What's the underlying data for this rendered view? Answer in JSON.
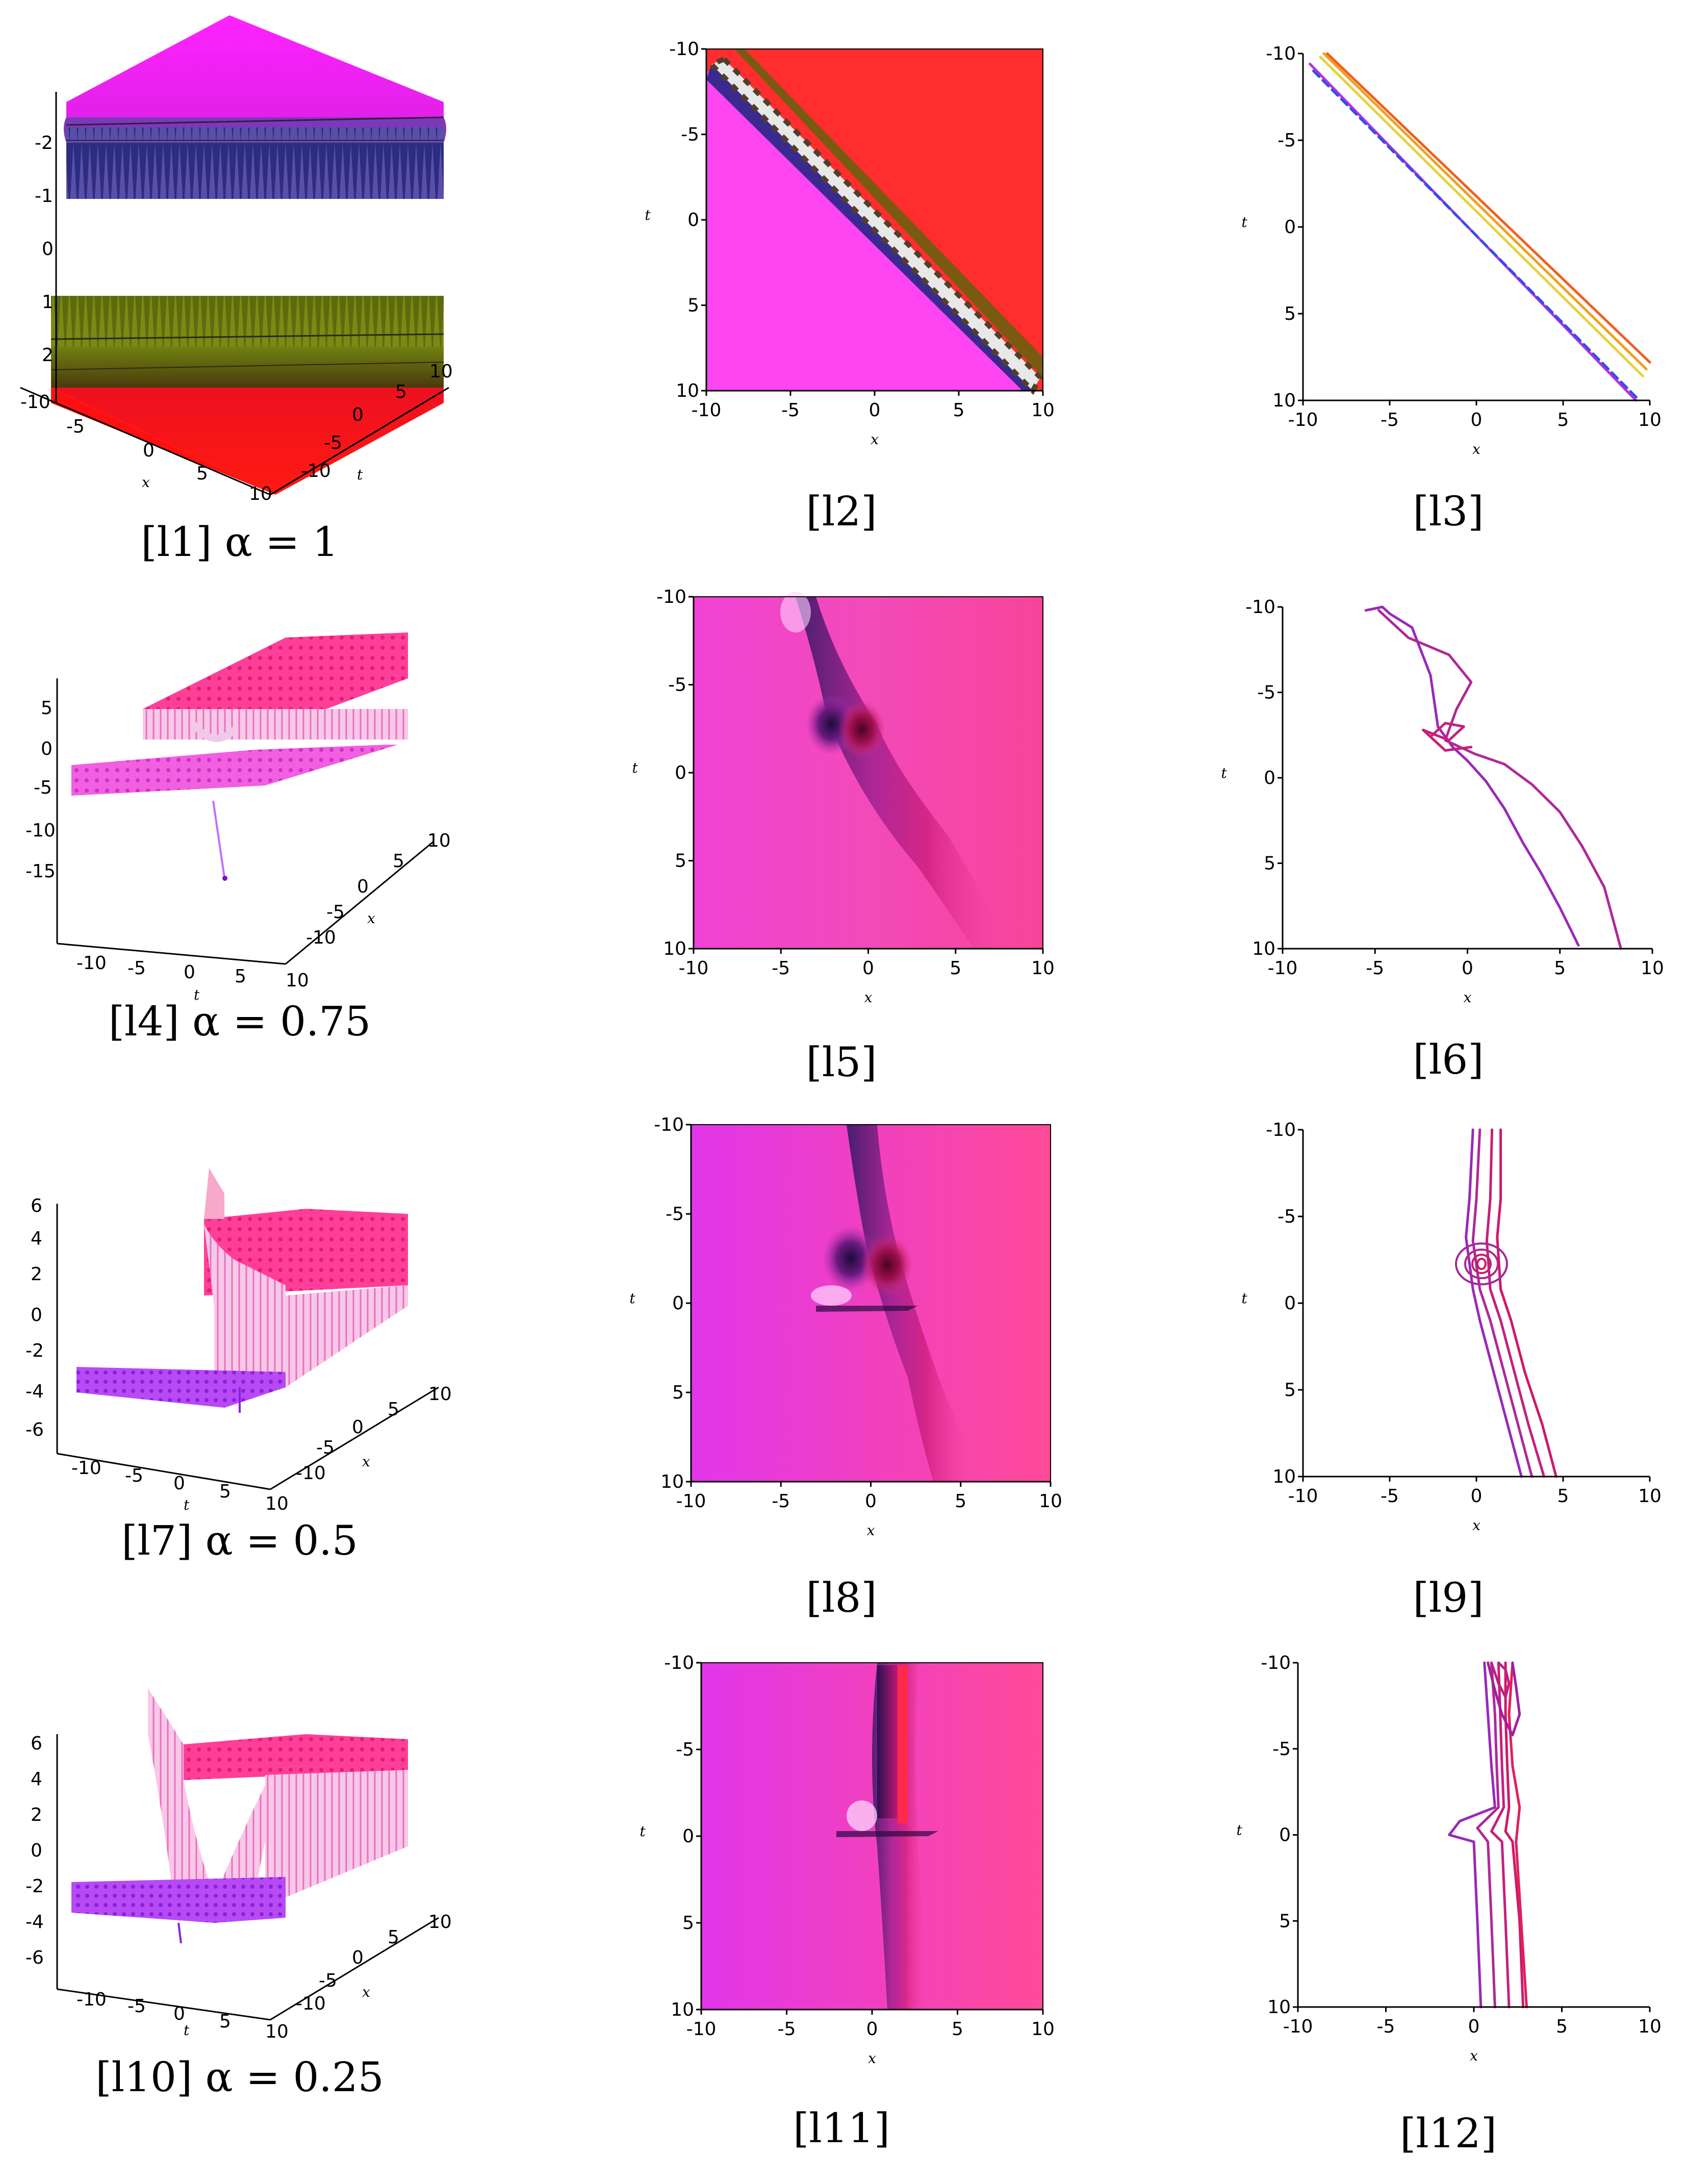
{
  "figure": {
    "panels": [
      {
        "id": "l1",
        "kind": "3d",
        "caption": "[l1] α = 1"
      },
      {
        "id": "l2",
        "kind": "density",
        "caption": "[l2]"
      },
      {
        "id": "l3",
        "kind": "contour",
        "caption": "[l3]"
      },
      {
        "id": "l4",
        "kind": "3d",
        "caption": "[l4] α = 0.75"
      },
      {
        "id": "l5",
        "kind": "density",
        "caption": "[l5]"
      },
      {
        "id": "l6",
        "kind": "contour",
        "caption": "[l6]"
      },
      {
        "id": "l7",
        "kind": "3d",
        "caption": "[l7] α = 0.5"
      },
      {
        "id": "l8",
        "kind": "density",
        "caption": "[l8]"
      },
      {
        "id": "l9",
        "kind": "contour",
        "caption": "[l9]"
      },
      {
        "id": "l10",
        "kind": "3d",
        "caption": "[l10] α = 0.25"
      },
      {
        "id": "l11",
        "kind": "density",
        "caption": "[l11]"
      },
      {
        "id": "l12",
        "kind": "contour",
        "caption": "[l12]"
      }
    ]
  },
  "chart_data": [
    {
      "type": "surface",
      "panel": "l1",
      "alpha": 1,
      "xlabel": "x",
      "ylabel": "t",
      "x_ticks": [
        -10,
        -5,
        0,
        5,
        10
      ],
      "t_ticks": [
        -10,
        -5,
        0,
        5,
        10
      ],
      "z_ticks": [
        -2,
        -1,
        0,
        1,
        2
      ]
    },
    {
      "type": "heatmap",
      "panel": "l2",
      "xlabel": "x",
      "ylabel": "t",
      "xlim": [
        -10,
        10
      ],
      "ylim": [
        -10,
        10
      ],
      "x_ticks": [
        -10,
        -5,
        0,
        5,
        10
      ],
      "y_ticks": [
        -10,
        -5,
        0,
        5,
        10
      ]
    },
    {
      "type": "line",
      "panel": "l3",
      "xlabel": "x",
      "ylabel": "t",
      "xlim": [
        -10,
        10
      ],
      "ylim": [
        -10,
        10
      ],
      "x_ticks": [
        -10,
        -5,
        0,
        5,
        10
      ],
      "y_ticks": [
        -10,
        -5,
        0,
        5,
        10
      ],
      "series": [
        {
          "x": [
            -9.6,
            9.2
          ],
          "y": [
            -9.4,
            10
          ]
        },
        {
          "x": [
            -9.4,
            9.4
          ],
          "y": [
            -9.0,
            10
          ]
        },
        {
          "x": [
            -9.0,
            9.6
          ],
          "y": [
            -9.8,
            8.6
          ]
        },
        {
          "x": [
            -8.8,
            9.8
          ],
          "y": [
            -10,
            8.2
          ]
        },
        {
          "x": [
            -8.6,
            10
          ],
          "y": [
            -10,
            7.8
          ]
        }
      ]
    },
    {
      "type": "surface",
      "panel": "l4",
      "alpha": 0.75,
      "xlabel": "x",
      "ylabel": "t",
      "x_ticks": [
        -10,
        -5,
        0,
        5,
        10
      ],
      "t_ticks": [
        -10,
        -5,
        0,
        5,
        10
      ],
      "z_ticks": [
        5,
        0,
        -5,
        -10,
        -15
      ]
    },
    {
      "type": "heatmap",
      "panel": "l5",
      "xlabel": "x",
      "ylabel": "t",
      "xlim": [
        -10,
        10
      ],
      "ylim": [
        -10,
        10
      ],
      "x_ticks": [
        -10,
        -5,
        0,
        5,
        10
      ],
      "y_ticks": [
        -10,
        -5,
        0,
        5,
        10
      ]
    },
    {
      "type": "line",
      "panel": "l6",
      "xlabel": "x",
      "ylabel": "t",
      "xlim": [
        -10,
        10
      ],
      "ylim": [
        -10,
        10
      ],
      "x_ticks": [
        -10,
        -5,
        0,
        5,
        10
      ],
      "y_ticks": [
        -10,
        -5,
        0,
        5,
        10
      ],
      "series": [
        {
          "x": [
            -5.5,
            -4.6,
            -4.2,
            -3.0,
            -2.0,
            -1.6,
            -0.8,
            0.0,
            1.0,
            2.0,
            3.0,
            4.0,
            5.0,
            6.0
          ],
          "y": [
            -9.8,
            -10.0,
            -9.6,
            -8.8,
            -6.0,
            -3.0,
            -1.8,
            -1.0,
            0.2,
            1.8,
            3.8,
            5.6,
            7.6,
            9.8
          ]
        },
        {
          "x": [
            -4.8,
            -3.2,
            -1.0,
            0.2,
            -0.6,
            -1.2,
            0.4,
            2.0,
            3.5,
            5.0,
            6.2,
            7.4,
            8.3
          ],
          "y": [
            -9.8,
            -8.2,
            -7.2,
            -5.6,
            -4.0,
            -2.2,
            -1.4,
            -0.8,
            0.4,
            2.0,
            4.0,
            6.4,
            10.0
          ]
        },
        {
          "x": [
            -2.0,
            -1.2,
            -0.2,
            -1.0,
            -2.4,
            -1.2,
            0.2
          ],
          "y": [
            -2.4,
            -3.2,
            -3.0,
            -2.2,
            -2.8,
            -1.6,
            -1.8
          ]
        }
      ]
    },
    {
      "type": "surface",
      "panel": "l7",
      "alpha": 0.5,
      "xlabel": "x",
      "ylabel": "t",
      "x_ticks": [
        -10,
        -5,
        0,
        5,
        10
      ],
      "t_ticks": [
        -10,
        -5,
        0,
        5,
        10
      ],
      "z_ticks": [
        6,
        4,
        2,
        0,
        -2,
        -4,
        -6
      ]
    },
    {
      "type": "heatmap",
      "panel": "l8",
      "xlabel": "x",
      "ylabel": "t",
      "xlim": [
        -10,
        10
      ],
      "ylim": [
        -10,
        10
      ],
      "x_ticks": [
        -10,
        -5,
        0,
        5,
        10
      ],
      "y_ticks": [
        -10,
        -5,
        0,
        5,
        10
      ]
    },
    {
      "type": "line",
      "panel": "l9",
      "xlabel": "x",
      "ylabel": "t",
      "xlim": [
        -10,
        10
      ],
      "ylim": [
        -10,
        10
      ],
      "x_ticks": [
        -10,
        -5,
        0,
        5,
        10
      ],
      "y_ticks": [
        -10,
        -5,
        0,
        5,
        10
      ],
      "series": [
        {
          "x": [
            -0.2,
            -0.4,
            -0.6,
            -0.2,
            0.2,
            1.0,
            1.8,
            2.6
          ],
          "y": [
            -10,
            -6,
            -3.8,
            -0.8,
            1.0,
            4.0,
            7.0,
            10
          ]
        },
        {
          "x": [
            0.2,
            0.0,
            -0.2,
            0.2,
            0.8,
            1.6,
            2.4,
            3.2
          ],
          "y": [
            -10,
            -6,
            -3.6,
            -0.8,
            1.0,
            4.0,
            7.0,
            10
          ]
        },
        {
          "x": [
            0.9,
            0.8,
            0.6,
            0.8,
            1.4,
            2.2,
            3.0,
            3.9
          ],
          "y": [
            -10,
            -6,
            -3.6,
            -0.8,
            1.0,
            4.0,
            7.0,
            10
          ]
        },
        {
          "x": [
            1.4,
            1.4,
            1.2,
            1.4,
            2.0,
            2.8,
            3.8,
            4.6
          ],
          "y": [
            -10,
            -6,
            -3.8,
            -0.8,
            1.0,
            4.0,
            7.0,
            10
          ]
        }
      ]
    },
    {
      "type": "surface",
      "panel": "l10",
      "alpha": 0.25,
      "xlabel": "x",
      "ylabel": "t",
      "x_ticks": [
        -10,
        -5,
        0,
        5,
        10
      ],
      "t_ticks": [
        -10,
        -5,
        0,
        5,
        10
      ],
      "z_ticks": [
        6,
        4,
        2,
        0,
        -2,
        -4,
        -6
      ]
    },
    {
      "type": "heatmap",
      "panel": "l11",
      "xlabel": "x",
      "ylabel": "t",
      "xlim": [
        -10,
        10
      ],
      "ylim": [
        -10,
        10
      ],
      "x_ticks": [
        -10,
        -5,
        0,
        5,
        10
      ],
      "y_ticks": [
        -10,
        -5,
        0,
        5,
        10
      ]
    },
    {
      "type": "line",
      "panel": "l12",
      "xlabel": "x",
      "ylabel": "t",
      "xlim": [
        -10,
        10
      ],
      "ylim": [
        -10,
        10
      ],
      "x_ticks": [
        -10,
        -5,
        0,
        5,
        10
      ],
      "y_ticks": [
        -10,
        -5,
        0,
        5,
        10
      ],
      "series": [
        {
          "x": [
            0.6,
            0.8,
            1.0,
            1.2,
            -0.8,
            -1.4,
            0.0,
            0.2,
            0.4
          ],
          "y": [
            -10,
            -7,
            -4,
            -1.6,
            -0.8,
            0.0,
            0.4,
            5.0,
            10
          ]
        },
        {
          "x": [
            1.0,
            1.2,
            1.3,
            1.4,
            0.2,
            0.8,
            1.0,
            1.2
          ],
          "y": [
            -10,
            -7,
            -4,
            -1.6,
            -0.4,
            0.4,
            5.0,
            10
          ]
        },
        {
          "x": [
            1.4,
            1.5,
            1.6,
            1.7,
            1.0,
            1.6,
            1.8,
            2.0
          ],
          "y": [
            -10,
            -7,
            -4,
            -1.6,
            -0.2,
            0.4,
            5.0,
            10
          ]
        },
        {
          "x": [
            1.8,
            1.8,
            1.9,
            2.0,
            1.8,
            2.2,
            2.6,
            2.8
          ],
          "y": [
            -10,
            -7,
            -4,
            -1.6,
            -0.2,
            0.4,
            5.0,
            10
          ]
        },
        {
          "x": [
            2.2,
            2.0,
            2.2,
            2.6,
            2.4,
            3.0
          ],
          "y": [
            -10,
            -7,
            -4,
            -1.6,
            0.4,
            10
          ]
        },
        {
          "x": [
            0.8,
            1.2,
            1.6,
            2.2,
            2.6,
            2.4,
            2.2
          ],
          "y": [
            -10,
            -8.4,
            -7.0,
            -5.8,
            -7.0,
            -8.6,
            -10
          ]
        },
        {
          "x": [
            1.0,
            1.4,
            1.8,
            2.0,
            1.8,
            1.4
          ],
          "y": [
            -10,
            -8.8,
            -8.0,
            -8.8,
            -9.6,
            -10
          ]
        }
      ]
    }
  ]
}
